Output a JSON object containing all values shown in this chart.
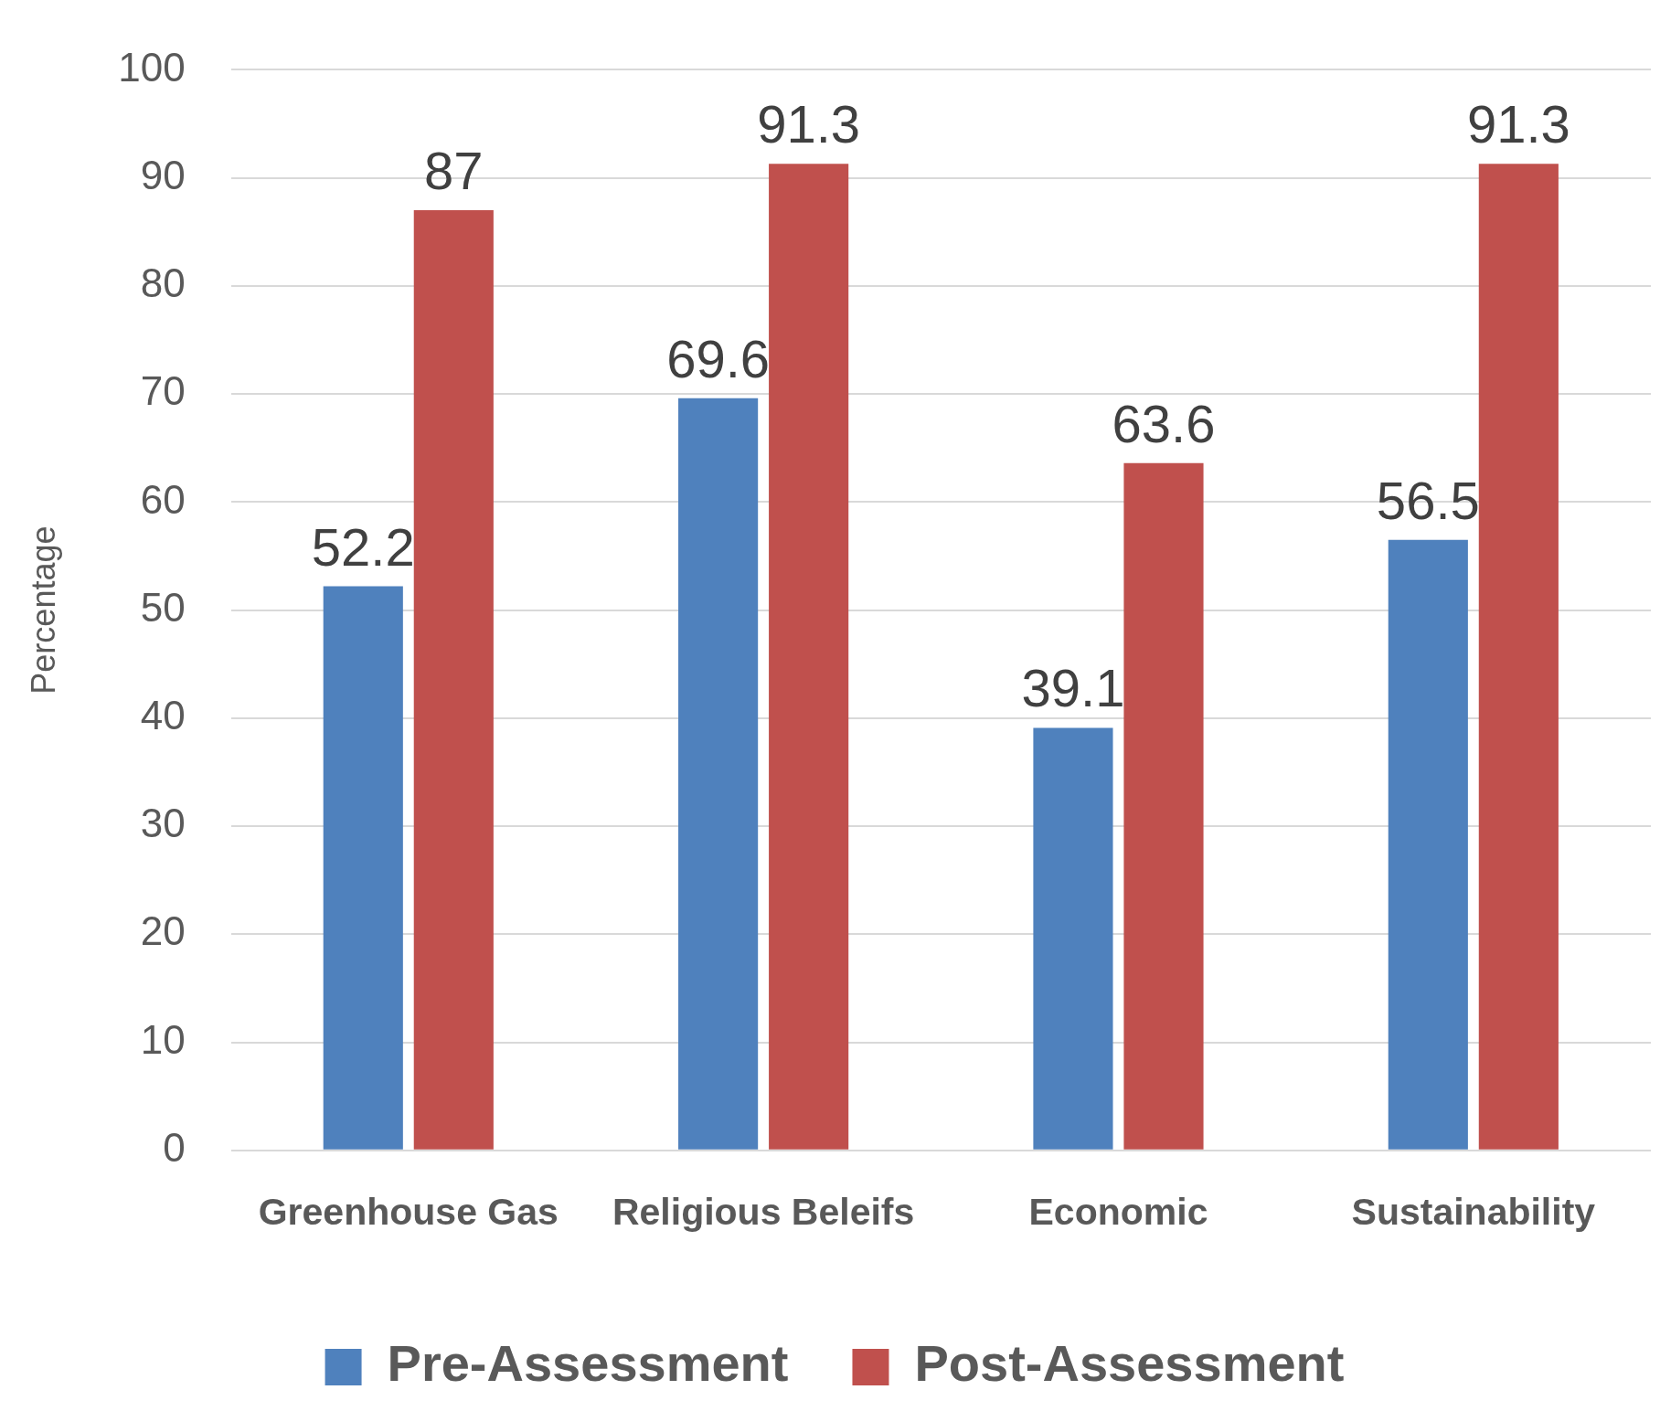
{
  "chart_data": {
    "type": "bar",
    "ylabel": "Percentage",
    "categories": [
      "Greenhouse Gas",
      "Religious Beleifs",
      "Economic",
      "Sustainability"
    ],
    "series": [
      {
        "name": "Pre-Assessment",
        "color": "#4f81bd",
        "values": [
          52.2,
          69.6,
          39.1,
          56.5
        ]
      },
      {
        "name": "Post-Assessment",
        "color": "#c0504d",
        "values": [
          87,
          91.3,
          63.6,
          91.3
        ]
      }
    ],
    "ylim": [
      0,
      100
    ],
    "yticks": [
      0,
      10,
      20,
      30,
      40,
      50,
      60,
      70,
      80,
      90,
      100
    ],
    "grid": "y",
    "legend": "bottom",
    "data_labels": true
  }
}
